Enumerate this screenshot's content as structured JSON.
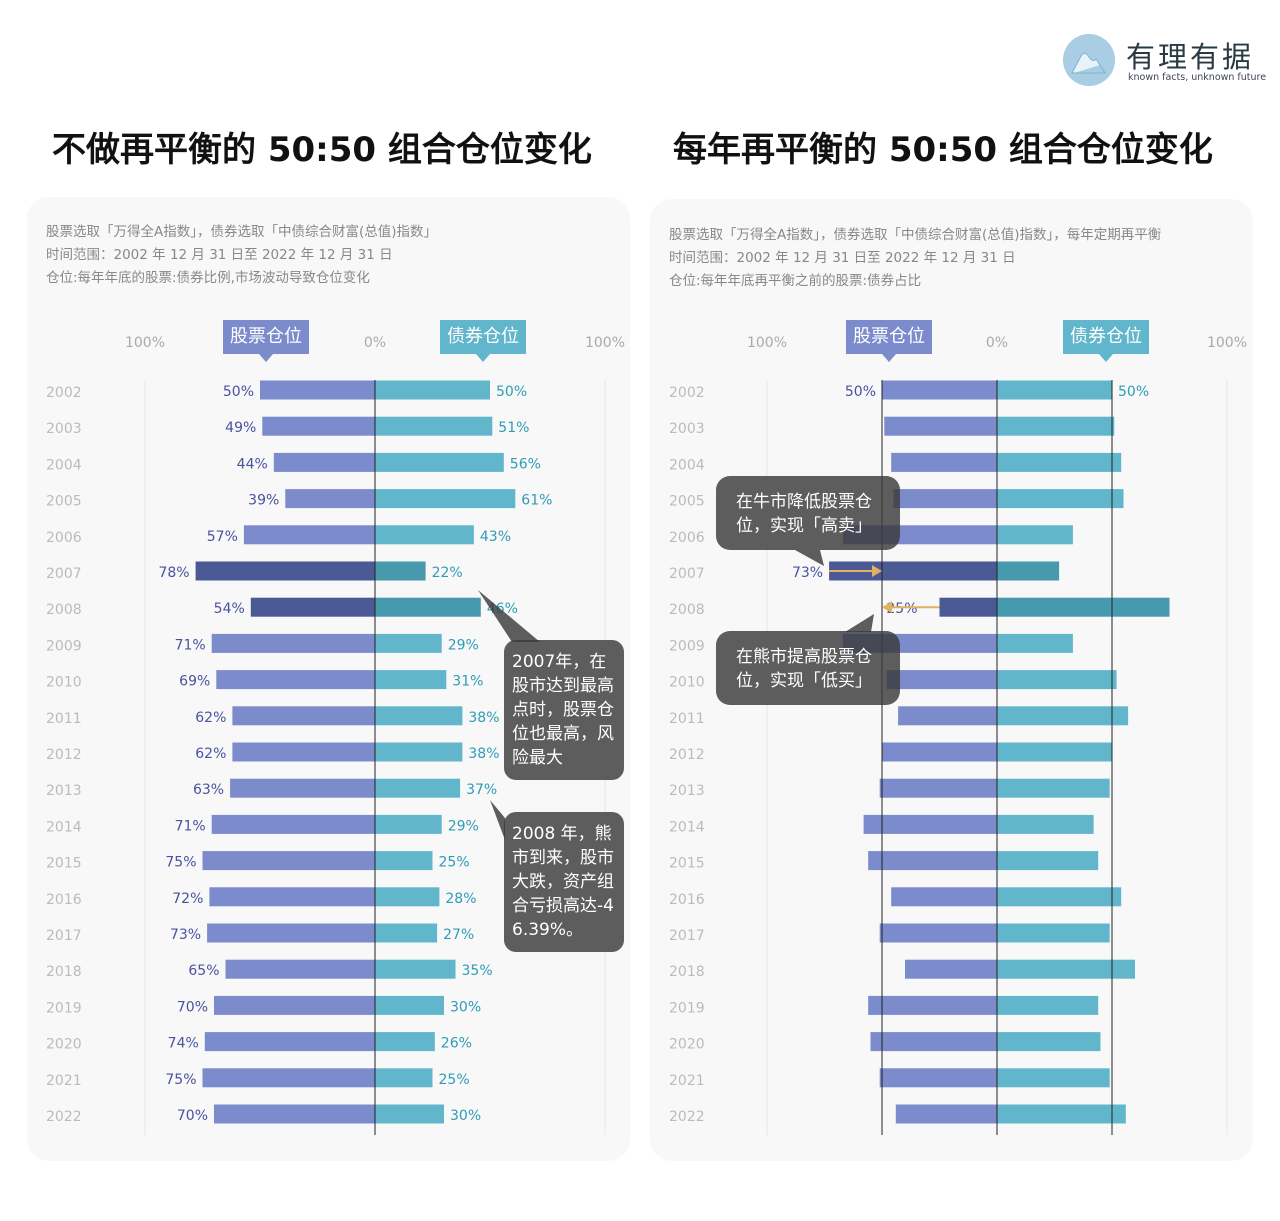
{
  "brand": {
    "name": "有理有据",
    "tagline": "known facts, unknown future"
  },
  "colors": {
    "stock": "#7b8bcb",
    "bond": "#62b6cb",
    "stock_highlight": "#4b5a94",
    "bond_highlight": "#4799ad",
    "stock_label": "#4a529e",
    "bond_label": "#2f9cb6",
    "arrow": "#e0b160"
  },
  "chart_data": [
    {
      "type": "bar",
      "title": "不做再平衡的 50:50 组合仓位变化",
      "notes": [
        "股票选取「万得全A指数」，债券选取「中债综合财富(总值)指数」",
        "时间范围：2002 年 12 月 31 日至 2022 年 12 月 31 日",
        "仓位:每年年底的股票:债券比例,市场波动导致仓位变化"
      ],
      "axis_ticks": [
        "100%",
        "0%",
        "100%"
      ],
      "series_labels": {
        "stock": "股票仓位",
        "bond": "债券仓位"
      },
      "categories": [
        "2002",
        "2003",
        "2004",
        "2005",
        "2006",
        "2007",
        "2008",
        "2009",
        "2010",
        "2011",
        "2012",
        "2013",
        "2014",
        "2015",
        "2016",
        "2017",
        "2018",
        "2019",
        "2020",
        "2021",
        "2022"
      ],
      "series": [
        {
          "name": "股票仓位",
          "values": [
            50,
            49,
            44,
            39,
            57,
            78,
            54,
            71,
            69,
            62,
            62,
            63,
            71,
            75,
            72,
            73,
            65,
            70,
            74,
            75,
            70
          ]
        },
        {
          "name": "债券仓位",
          "values": [
            50,
            51,
            56,
            61,
            43,
            22,
            46,
            29,
            31,
            38,
            38,
            37,
            29,
            25,
            28,
            27,
            35,
            30,
            26,
            25,
            30
          ]
        }
      ],
      "labels_shown": "all",
      "highlight": [
        "2007",
        "2008"
      ],
      "annotations": [
        "2007年，在股市达到最高点时，股票仓位也最高，风险最大",
        "2008 年，熊市到来，股市大跌，资产组合亏损高达-46.39%。"
      ]
    },
    {
      "type": "bar",
      "title": "每年再平衡的 50:50 组合仓位变化",
      "notes": [
        "股票选取「万得全A指数」，债券选取「中债综合财富(总值)指数」，每年定期再平衡",
        "时间范围：2002 年 12 月 31 日至 2022 年 12 月 31 日",
        "仓位:每年年底再平衡之前的股票:债券占比"
      ],
      "axis_ticks": [
        "100%",
        "0%",
        "100%"
      ],
      "series_labels": {
        "stock": "股票仓位",
        "bond": "债券仓位"
      },
      "categories": [
        "2002",
        "2003",
        "2004",
        "2005",
        "2006",
        "2007",
        "2008",
        "2009",
        "2010",
        "2011",
        "2012",
        "2013",
        "2014",
        "2015",
        "2016",
        "2017",
        "2018",
        "2019",
        "2020",
        "2021",
        "2022"
      ],
      "series": [
        {
          "name": "股票仓位",
          "values": [
            50,
            49,
            46,
            45,
            67,
            73,
            25,
            67,
            48,
            43,
            50,
            51,
            58,
            56,
            46,
            51,
            40,
            56,
            55,
            51,
            44
          ]
        },
        {
          "name": "债券仓位",
          "values": [
            50,
            51,
            54,
            55,
            33,
            27,
            75,
            33,
            52,
            57,
            50,
            49,
            42,
            44,
            54,
            49,
            60,
            44,
            45,
            49,
            56
          ]
        }
      ],
      "labels_shown": "2002,2007,2008",
      "highlight": [
        "2007",
        "2008"
      ],
      "reference_lines": [
        50
      ],
      "annotations": [
        "在牛市降低股票仓位，实现「高卖」",
        "在熊市提高股票仓位，实现「低买」"
      ]
    }
  ]
}
